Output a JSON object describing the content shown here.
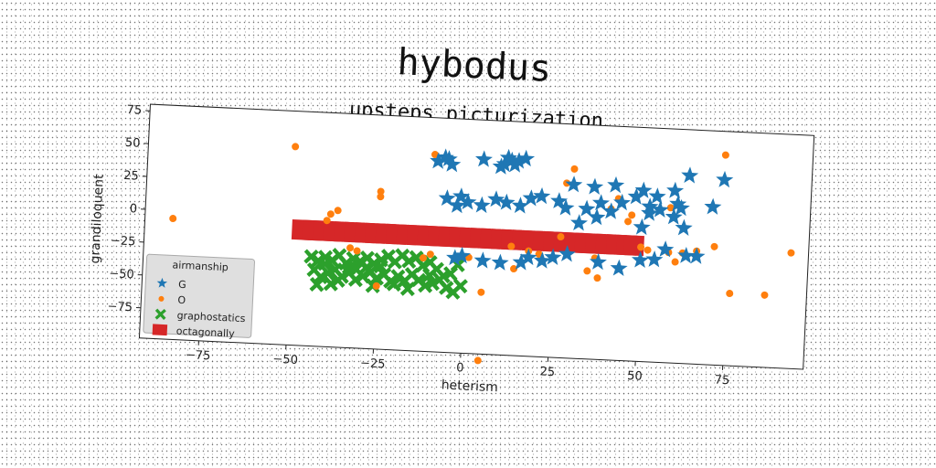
{
  "chart_data": {
    "type": "scatter",
    "suptitle": "hybodus",
    "title": "upsteps picturization",
    "xlabel": "heterism",
    "ylabel": "grandiloquent",
    "xlim": [
      -92,
      98
    ],
    "ylim": [
      -98,
      80
    ],
    "xticks": [
      -75,
      -50,
      -25,
      0,
      25,
      50,
      75
    ],
    "yticks": [
      75,
      50,
      25,
      0,
      -25,
      -50,
      -75
    ],
    "xtick_labels": [
      "−75",
      "−50",
      "−25",
      "0",
      "25",
      "50",
      "75"
    ],
    "ytick_labels": [
      "75",
      "50",
      "25",
      "0",
      "−25",
      "−50",
      "−75"
    ],
    "grid": false,
    "legend": {
      "title": "airmanship",
      "placement": "lower-left"
    },
    "series": [
      {
        "name": "G",
        "marker": "star",
        "color": "#1f77b4",
        "points": [
          [
            -9,
            47
          ],
          [
            -7,
            50
          ],
          [
            -6,
            49
          ],
          [
            -5,
            45
          ],
          [
            4,
            50
          ],
          [
            9,
            45
          ],
          [
            10,
            47
          ],
          [
            11,
            52
          ],
          [
            12,
            50
          ],
          [
            14,
            50
          ],
          [
            13,
            47
          ],
          [
            16,
            52
          ],
          [
            30,
            34
          ],
          [
            36,
            33
          ],
          [
            42,
            35
          ],
          [
            50,
            32
          ],
          [
            54,
            28
          ],
          [
            48,
            27
          ],
          [
            59,
            33
          ],
          [
            63,
            45
          ],
          [
            73,
            43
          ],
          [
            60,
            23
          ],
          [
            61,
            20
          ],
          [
            70,
            22
          ],
          [
            -6,
            19
          ],
          [
            -3,
            14
          ],
          [
            -2,
            21
          ],
          [
            0,
            17
          ],
          [
            4,
            15
          ],
          [
            8,
            20
          ],
          [
            11,
            18
          ],
          [
            15,
            16
          ],
          [
            18,
            22
          ],
          [
            21,
            24
          ],
          [
            26,
            21
          ],
          [
            28,
            16
          ],
          [
            34,
            16
          ],
          [
            38,
            21
          ],
          [
            41,
            15
          ],
          [
            44,
            22
          ],
          [
            52,
            15
          ],
          [
            52,
            20
          ],
          [
            55,
            18
          ],
          [
            59,
            13
          ],
          [
            37,
            10
          ],
          [
            32,
            5
          ],
          [
            50,
            4
          ],
          [
            62,
            5
          ],
          [
            57,
            -12
          ],
          [
            -3,
            -26
          ],
          [
            -1,
            -24
          ],
          [
            5,
            -27
          ],
          [
            10,
            -28
          ],
          [
            16,
            -27
          ],
          [
            18,
            -23
          ],
          [
            22,
            -25
          ],
          [
            25,
            -22
          ],
          [
            29,
            -19
          ],
          [
            38,
            -24
          ],
          [
            44,
            -28
          ],
          [
            50,
            -21
          ],
          [
            54,
            -20
          ],
          [
            63,
            -16
          ],
          [
            66,
            -16
          ]
        ]
      },
      {
        "name": "O",
        "marker": "circle",
        "color": "#ff7f0e",
        "points": [
          [
            -84,
            -6
          ],
          [
            -50,
            53
          ],
          [
            -40,
            -2
          ],
          [
            -39,
            3
          ],
          [
            -37,
            6
          ],
          [
            -25,
            22
          ],
          [
            -25,
            18
          ],
          [
            -33,
            -22
          ],
          [
            -31,
            -24
          ],
          [
            -25,
            -50
          ],
          [
            -10,
            52
          ],
          [
            -12,
            -27
          ],
          [
            -10,
            -24
          ],
          [
            1,
            -25
          ],
          [
            5,
            -51
          ],
          [
            5,
            -103
          ],
          [
            13,
            -15
          ],
          [
            14,
            -32
          ],
          [
            18,
            -18
          ],
          [
            21,
            -20
          ],
          [
            27,
            -6
          ],
          [
            28,
            35
          ],
          [
            30,
            46
          ],
          [
            35,
            -31
          ],
          [
            37,
            -21
          ],
          [
            38,
            -36
          ],
          [
            41,
            17
          ],
          [
            43,
            25
          ],
          [
            46,
            8
          ],
          [
            47,
            13
          ],
          [
            50,
            -11
          ],
          [
            52,
            -13
          ],
          [
            58,
            -14
          ],
          [
            58,
            20
          ],
          [
            60,
            -21
          ],
          [
            62,
            -14
          ],
          [
            66,
            -12
          ],
          [
            71,
            -8
          ],
          [
            73,
            62
          ],
          [
            76,
            -43
          ],
          [
            86,
            -43
          ],
          [
            93,
            -10
          ]
        ]
      },
      {
        "name": "graphostatics",
        "marker": "x",
        "color": "#2ca02c",
        "points": [
          [
            -44,
            -30
          ],
          [
            -42,
            -33
          ],
          [
            -40,
            -30
          ],
          [
            -38,
            -32
          ],
          [
            -36,
            -28
          ],
          [
            -34,
            -34
          ],
          [
            -32,
            -30
          ],
          [
            -30,
            -32
          ],
          [
            -28,
            -29
          ],
          [
            -26,
            -33
          ],
          [
            -24,
            -30
          ],
          [
            -22,
            -27
          ],
          [
            -20,
            -31
          ],
          [
            -18,
            -26
          ],
          [
            -16,
            -30
          ],
          [
            -14,
            -27
          ],
          [
            -12,
            -33
          ],
          [
            -10,
            -30
          ],
          [
            -8,
            -35
          ],
          [
            -6,
            -40
          ],
          [
            -4,
            -38
          ],
          [
            -2,
            -31
          ],
          [
            -43,
            -40
          ],
          [
            -41,
            -45
          ],
          [
            -39,
            -42
          ],
          [
            -37,
            -39
          ],
          [
            -35,
            -44
          ],
          [
            -33,
            -41
          ],
          [
            -31,
            -46
          ],
          [
            -29,
            -43
          ],
          [
            -27,
            -40
          ],
          [
            -25,
            -44
          ],
          [
            -23,
            -41
          ],
          [
            -21,
            -46
          ],
          [
            -19,
            -42
          ],
          [
            -17,
            -45
          ],
          [
            -15,
            -40
          ],
          [
            -13,
            -44
          ],
          [
            -11,
            -48
          ],
          [
            -9,
            -46
          ],
          [
            -7,
            -43
          ],
          [
            -5,
            -49
          ],
          [
            -3,
            -52
          ],
          [
            -1,
            -47
          ],
          [
            -36,
            -47
          ],
          [
            -33,
            -37
          ],
          [
            -28,
            -36
          ],
          [
            -16,
            -51
          ],
          [
            -40,
            -35
          ],
          [
            -42,
            -51
          ],
          [
            -24,
            -35
          ],
          [
            -20,
            -48
          ],
          [
            -10,
            -40
          ],
          [
            -26,
            -50
          ],
          [
            -38,
            -50
          ],
          [
            -31,
            -38
          ]
        ]
      },
      {
        "name": "octagonally",
        "marker": "square",
        "color": "#d62728",
        "points": [
          [
            -47,
            -10
          ],
          [
            -44,
            -10
          ],
          [
            -41,
            -10
          ],
          [
            -38,
            -10
          ],
          [
            -35,
            -10
          ],
          [
            -32,
            -10
          ],
          [
            -29,
            -10
          ],
          [
            -26,
            -10
          ],
          [
            -23,
            -10
          ],
          [
            -20,
            -10
          ],
          [
            -17,
            -10
          ],
          [
            -14,
            -10
          ],
          [
            -11,
            -10
          ],
          [
            -8,
            -10
          ],
          [
            -5,
            -10
          ],
          [
            -2,
            -10
          ],
          [
            1,
            -10
          ],
          [
            4,
            -10
          ],
          [
            7,
            -10
          ],
          [
            10,
            -10
          ],
          [
            13,
            -10
          ],
          [
            16,
            -10
          ],
          [
            19,
            -10
          ],
          [
            22,
            -10
          ],
          [
            25,
            -10
          ],
          [
            28,
            -10
          ],
          [
            31,
            -10
          ],
          [
            34,
            -10
          ],
          [
            37,
            -10
          ],
          [
            40,
            -10
          ],
          [
            43,
            -10
          ],
          [
            46,
            -10
          ],
          [
            48,
            -10
          ]
        ]
      }
    ]
  }
}
